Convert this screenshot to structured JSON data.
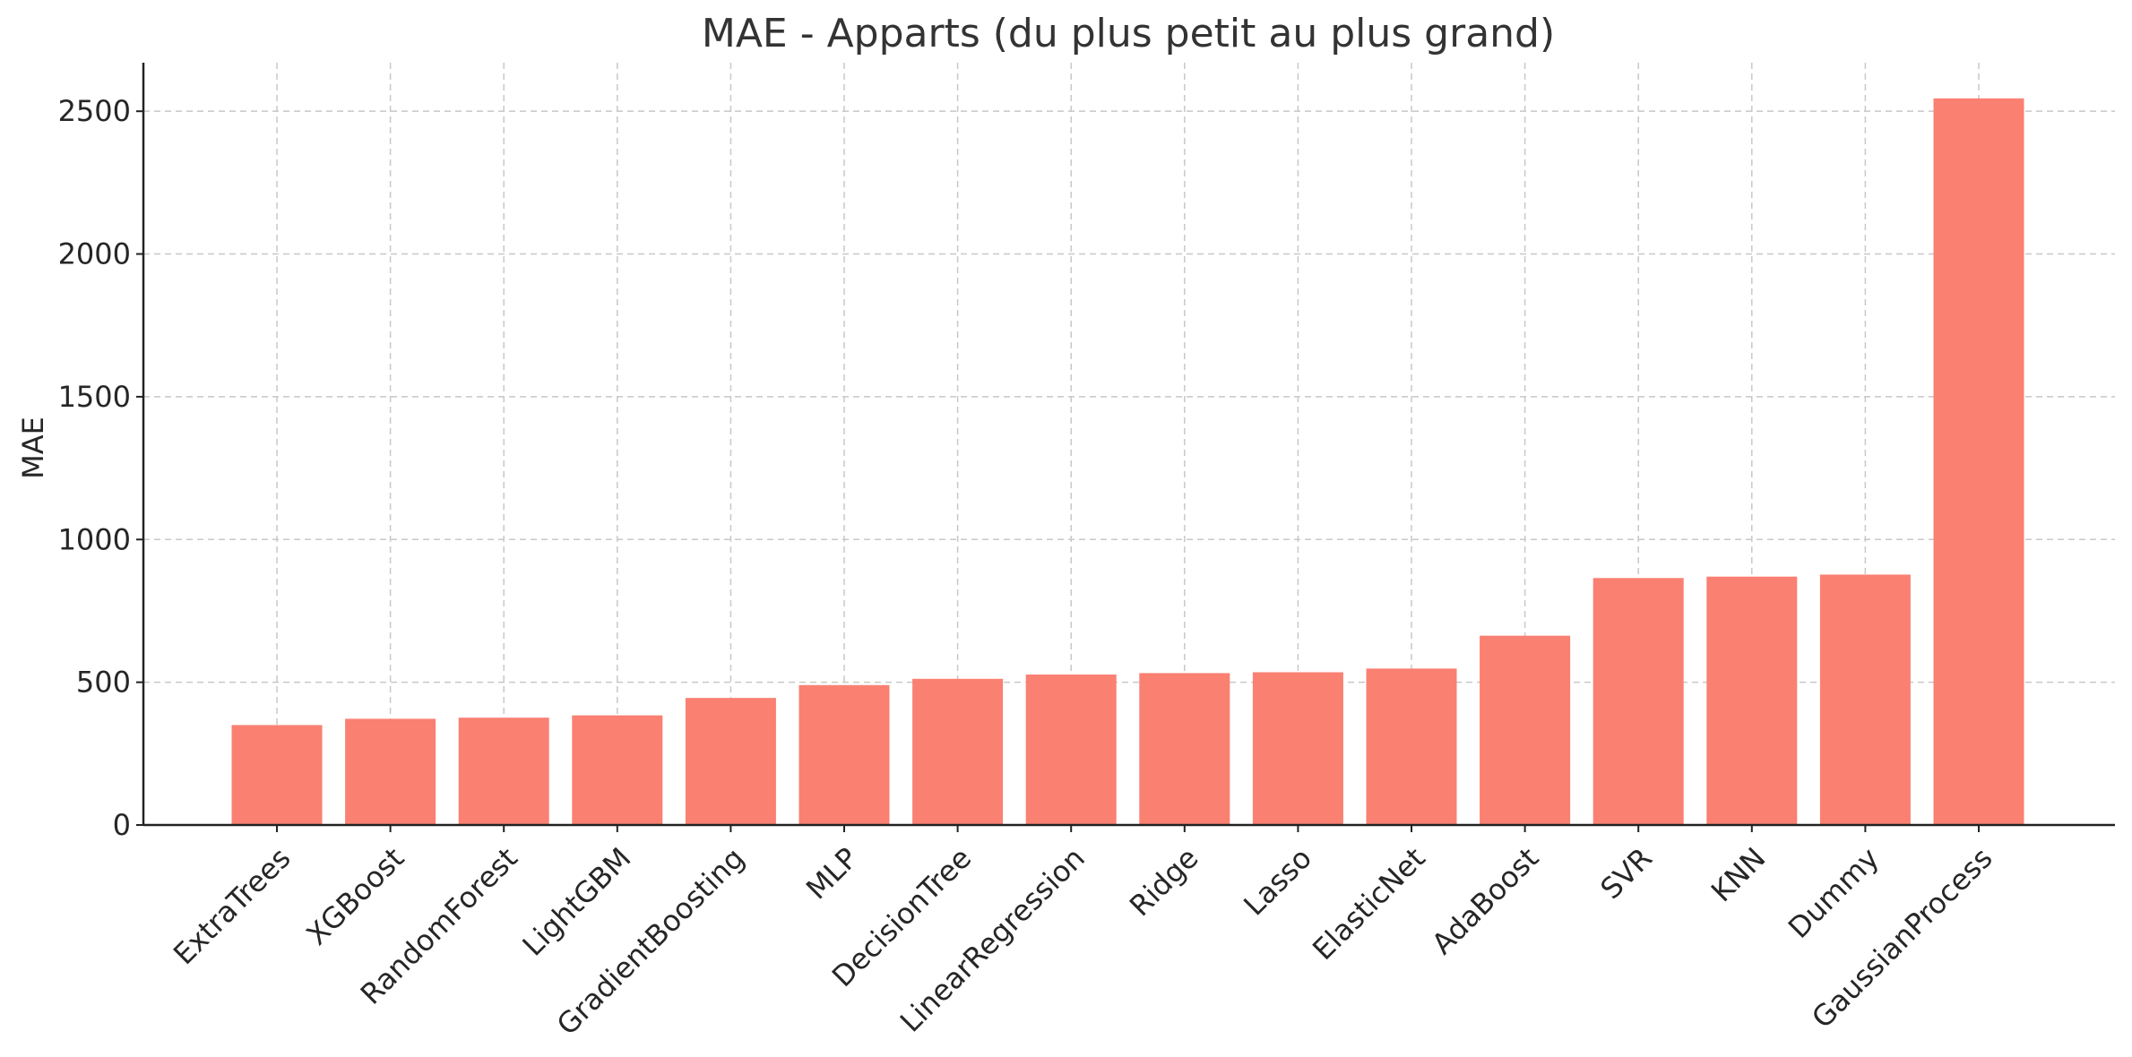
{
  "chart_data": {
    "type": "bar",
    "title": "MAE - Apparts (du plus petit au plus grand)",
    "xlabel": "",
    "ylabel": "MAE",
    "categories": [
      "ExtraTrees",
      "XGBoost",
      "RandomForest",
      "LightGBM",
      "GradientBoosting",
      "MLP",
      "DecisionTree",
      "LinearRegression",
      "Ridge",
      "Lasso",
      "ElasticNet",
      "AdaBoost",
      "SVR",
      "KNN",
      "Dummy",
      "GaussianProcess"
    ],
    "values": [
      350,
      372,
      376,
      384,
      445,
      490,
      512,
      527,
      532,
      535,
      548,
      663,
      865,
      870,
      877,
      2545
    ],
    "ylim": [
      0,
      2670
    ],
    "yticks": [
      0,
      500,
      1000,
      1500,
      2000,
      2500
    ],
    "grid": true,
    "legend": "none",
    "colors": {
      "bar": "#fa8072",
      "grid": "#c8c8c8",
      "axis": "#222222",
      "text": "#262626",
      "title": "#333333"
    }
  }
}
